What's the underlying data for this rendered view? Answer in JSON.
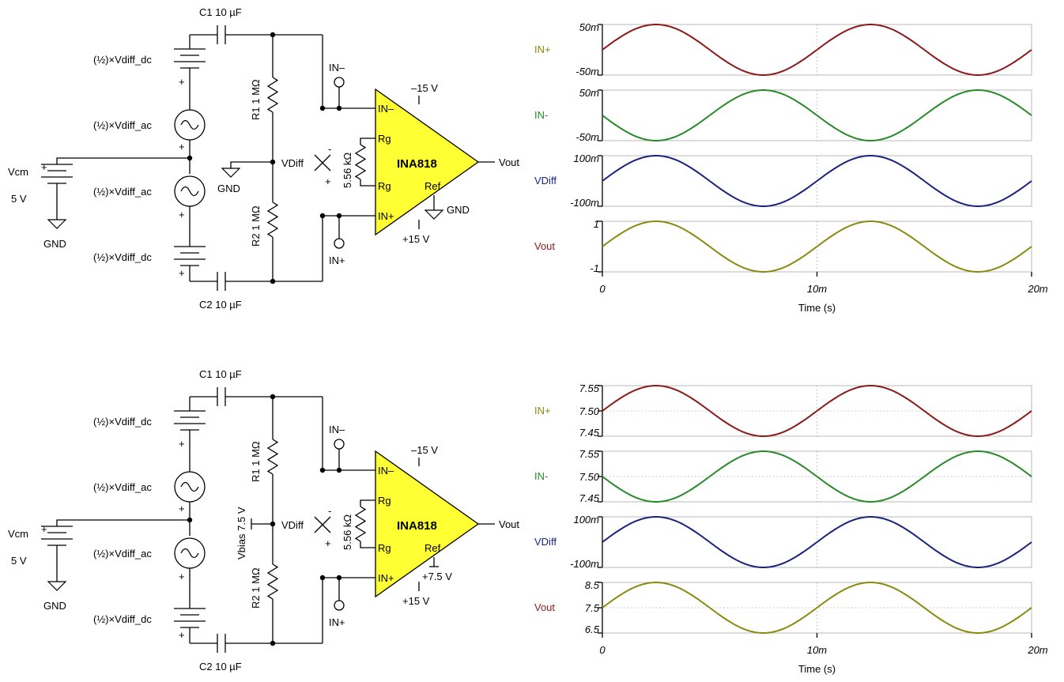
{
  "circuits": [
    {
      "c1": "C1 10 µF",
      "c2": "C2 10 µF",
      "r1": "R1 1 MΩ",
      "r2": "R2 1 MΩ",
      "vdc_top": "(½)×Vdiff_dc",
      "vac_top": "(½)×Vdiff_ac",
      "vac_bot": "(½)×Vdiff_ac",
      "vdc_bot": "(½)×Vdiff_dc",
      "vcm_name": "Vcm",
      "vcm_value": "5 V",
      "gnd_vcm": "GND",
      "gnd_mid": "GND",
      "gnd_ref": "GND",
      "vdiff": "VDiff",
      "in_minus_probe": "IN–",
      "in_plus_probe": "IN+",
      "rg_res": "5.56 kΩ",
      "chip": "INA818",
      "pin_in_minus": "IN–",
      "pin_in_plus": "IN+",
      "pin_rg1": "Rg",
      "pin_rg2": "Rg",
      "pin_ref": "Ref",
      "neg_supply": "–15 V",
      "pos_supply": "+15 V",
      "vout": "Vout",
      "plus": "+",
      "minus": "-",
      "vbias": "",
      "ref_v": ""
    },
    {
      "c1": "C1 10 µF",
      "c2": "C2 10 µF",
      "r1": "R1 1 MΩ",
      "r2": "R2 1 MΩ",
      "vdc_top": "(½)×Vdiff_dc",
      "vac_top": "(½)×Vdiff_ac",
      "vac_bot": "(½)×Vdiff_ac",
      "vdc_bot": "(½)×Vdiff_dc",
      "vcm_name": "Vcm",
      "vcm_value": "5 V",
      "gnd_vcm": "GND",
      "gnd_mid": "",
      "gnd_ref": "",
      "vdiff": "VDiff",
      "in_minus_probe": "IN–",
      "in_plus_probe": "IN+",
      "rg_res": "5.56 kΩ",
      "chip": "INA818",
      "pin_in_minus": "IN–",
      "pin_in_plus": "IN+",
      "pin_rg1": "Rg",
      "pin_rg2": "Rg",
      "pin_ref": "Ref",
      "neg_supply": "–15 V",
      "pos_supply": "+15 V",
      "vout": "Vout",
      "plus": "+",
      "minus": "-",
      "vbias": "Vbias 7.5 V",
      "ref_v": "+7.5 V"
    }
  ],
  "colors": {
    "in_plus": "#8b1a1a",
    "in_minus": "#2a8a2a",
    "vdiff": "#1a237e",
    "vout": "#8a8a10",
    "chip_fill": "#ffff33",
    "plot_label_in_plus": "#8a8a10",
    "plot_label_in_minus": "#2a8a2a",
    "plot_label_vdiff": "#1a237e",
    "plot_label_vout": "#8b1a1a"
  },
  "chart_data": [
    {
      "type": "line",
      "xlabel": "Time (s)",
      "x_ticks": [
        "0",
        "10m",
        "20m"
      ],
      "xlim": [
        0,
        0.02
      ],
      "grid": true,
      "panels": [
        {
          "name": "IN+",
          "ylim": [
            -0.05,
            0.05
          ],
          "y_ticks": [
            "50m",
            "-50m"
          ],
          "amplitude": 0.05,
          "offset": 0,
          "phase": "sin",
          "frequency_hz": 100,
          "color": "#8b1a1a"
        },
        {
          "name": "IN-",
          "ylim": [
            -0.05,
            0.05
          ],
          "y_ticks": [
            "50m",
            "-50m"
          ],
          "amplitude": 0.05,
          "offset": 0,
          "phase": "-sin",
          "frequency_hz": 100,
          "color": "#2a8a2a"
        },
        {
          "name": "VDiff",
          "ylim": [
            -0.1,
            0.1
          ],
          "y_ticks": [
            "100m",
            "-100m"
          ],
          "amplitude": 0.1,
          "offset": 0,
          "phase": "sin",
          "frequency_hz": 100,
          "color": "#1a237e"
        },
        {
          "name": "Vout",
          "ylim": [
            -1,
            1
          ],
          "y_ticks": [
            "1",
            "-1"
          ],
          "amplitude": 1,
          "offset": 0,
          "phase": "sin",
          "frequency_hz": 100,
          "color": "#8a8a10"
        }
      ]
    },
    {
      "type": "line",
      "xlabel": "Time (s)",
      "x_ticks": [
        "0",
        "10m",
        "20m"
      ],
      "xlim": [
        0,
        0.02
      ],
      "grid": true,
      "panels": [
        {
          "name": "IN+",
          "ylim": [
            7.45,
            7.55
          ],
          "y_ticks": [
            "7.55",
            "7.50",
            "7.45"
          ],
          "amplitude": 0.05,
          "offset": 7.5,
          "phase": "sin",
          "frequency_hz": 100,
          "color": "#8b1a1a"
        },
        {
          "name": "IN-",
          "ylim": [
            7.45,
            7.55
          ],
          "y_ticks": [
            "7.55",
            "7.50",
            "7.45"
          ],
          "amplitude": 0.05,
          "offset": 7.5,
          "phase": "-sin",
          "frequency_hz": 100,
          "color": "#2a8a2a"
        },
        {
          "name": "VDiff",
          "ylim": [
            -0.1,
            0.1
          ],
          "y_ticks": [
            "100m",
            "-100m"
          ],
          "amplitude": 0.1,
          "offset": 0,
          "phase": "sin",
          "frequency_hz": 100,
          "color": "#1a237e"
        },
        {
          "name": "Vout",
          "ylim": [
            6.5,
            8.5
          ],
          "y_ticks": [
            "8.5",
            "7.5",
            "6.5"
          ],
          "amplitude": 1,
          "offset": 7.5,
          "phase": "sin",
          "frequency_hz": 100,
          "color": "#8a8a10"
        }
      ]
    }
  ]
}
